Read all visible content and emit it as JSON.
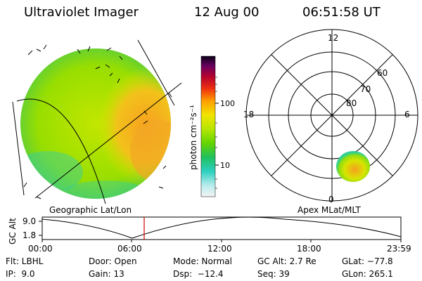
{
  "header": {
    "title": "Ultraviolet Imager",
    "date": "12 Aug 00",
    "time": "06:51:58 UT"
  },
  "colorbar": {
    "unit_label": "photon cm⁻²s⁻¹",
    "tick_100": "100",
    "tick_10": "10",
    "scale": "log"
  },
  "polar_plot": {
    "mlt_labels": {
      "top": "12",
      "left": "18",
      "right": "6",
      "bottom": "0"
    },
    "lat_labels": [
      "60",
      "70",
      "80"
    ]
  },
  "projections": {
    "left": "Geographic Lat/Lon",
    "right": "Apex MLat/MLT"
  },
  "altitude_strip": {
    "axis_label": "GC Alt",
    "y_ticks": [
      "9.0",
      "1.8"
    ],
    "x_ticks": [
      "00:00",
      "06:00",
      "12:00",
      "18:00",
      "23:59"
    ],
    "current_marker_time": "06:51:58",
    "marker_color": "#cc0000"
  },
  "info": {
    "filter": "Flt: LBHL",
    "ip": "IP:  9.0",
    "door": "Door: Open",
    "gain": "Gain: 13",
    "mode": "Mode: Normal",
    "dsp": "Dsp:  −12.4",
    "gc_alt": "GC Alt: 2.7 Re",
    "seq": "Seq: 39",
    "glat": "GLat: −77.8",
    "glon": "GLon: 265.1"
  },
  "colors": {
    "imager_green": "#9ae000",
    "imager_yellow": "#d8e800",
    "imager_orange": "#f5a623",
    "imager_cyan": "#2ecfae"
  }
}
